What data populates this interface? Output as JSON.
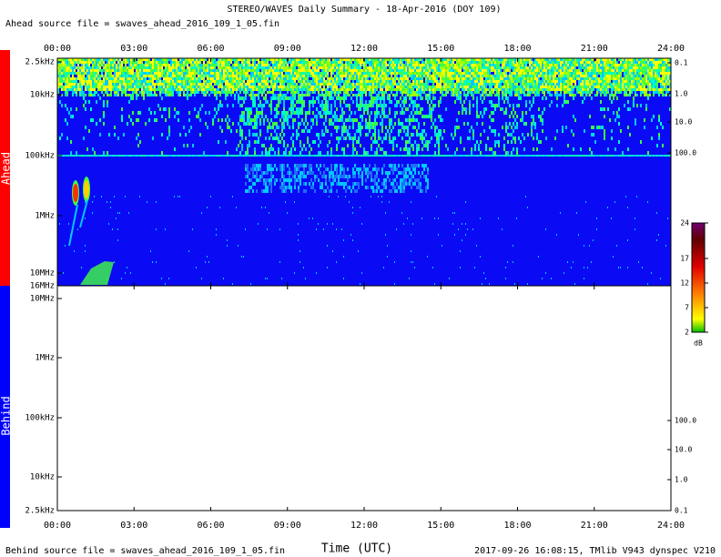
{
  "title": "STEREO/WAVES Daily Summary - 18-Apr-2016 (DOY 109)",
  "ahead_source": "Ahead source file = swaves_ahead_2016_109_1_05.fin",
  "behind_source": "Behind source file = swaves_ahead_2016_109_1_05.fin",
  "footer": "2017-09-26 16:08:15, TMlib V943 dynspec V210",
  "x_axis_label": "Time (UTC)",
  "time_ticks": [
    "00:00",
    "03:00",
    "06:00",
    "09:00",
    "12:00",
    "15:00",
    "18:00",
    "21:00",
    "24:00"
  ],
  "ahead": {
    "label": "Ahead",
    "freq_ticks": [
      "2.5kHz",
      "10kHz",
      "100kHz",
      "1MHz",
      "10MHz",
      "16MHz"
    ],
    "right_ticks": [
      "0.1",
      "1.0",
      "10.0",
      "100.0"
    ]
  },
  "behind": {
    "label": "Behind",
    "freq_ticks": [
      "10MHz",
      "1MHz",
      "100kHz",
      "10kHz",
      "2.5kHz"
    ],
    "right_ticks": [
      "100.0",
      "10.0",
      "1.0",
      "0.1"
    ]
  },
  "colorbar": {
    "ticks": [
      "24",
      "17",
      "12",
      "7",
      "2"
    ],
    "unit": "dB"
  }
}
